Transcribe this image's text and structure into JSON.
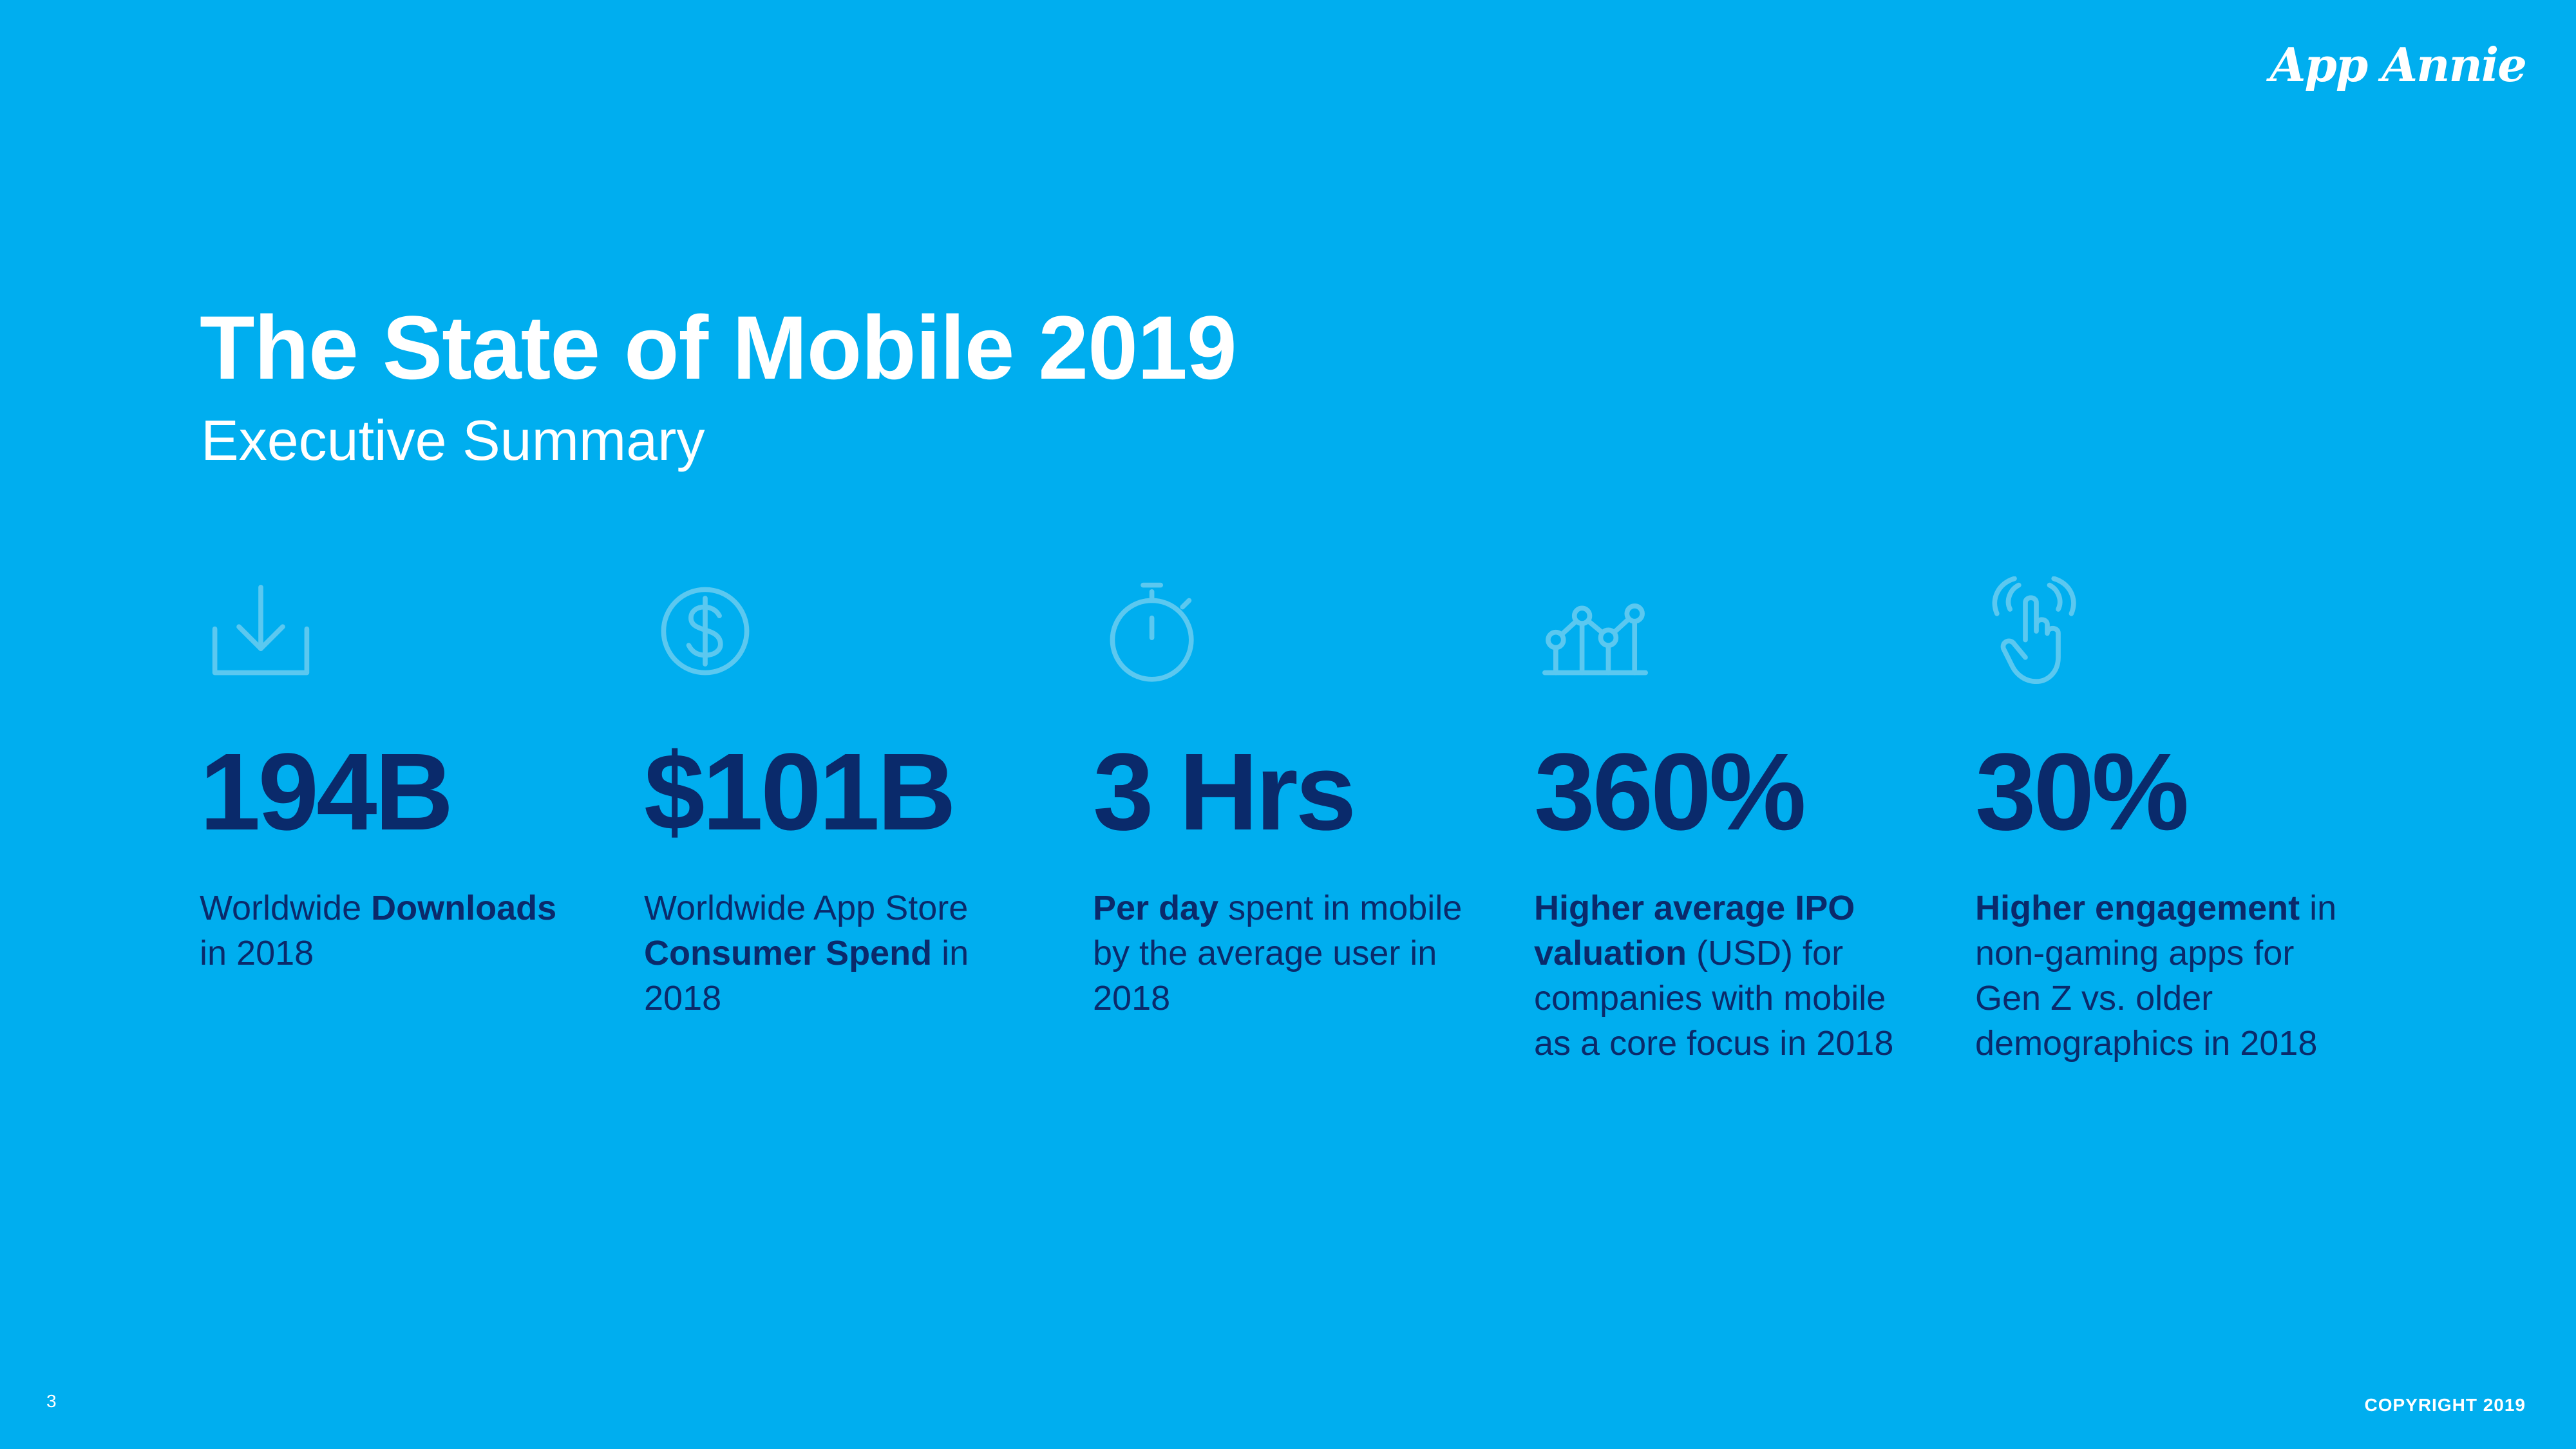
{
  "brand": {
    "logo_text": "App Annie"
  },
  "header": {
    "title": "The State of Mobile 2019",
    "subtitle": "Executive Summary"
  },
  "stats": [
    {
      "icon": "download-icon",
      "value": "194B",
      "desc_parts": [
        {
          "text": "Worldwide ",
          "bold": false
        },
        {
          "text": "Downloads",
          "bold": true
        },
        {
          "text": " in 2018",
          "bold": false
        }
      ]
    },
    {
      "icon": "dollar-coin-icon",
      "value": "$101B",
      "desc_parts": [
        {
          "text": "Worldwide App Store ",
          "bold": false
        },
        {
          "text": "Consumer Spend",
          "bold": true
        },
        {
          "text": " in 2018",
          "bold": false
        }
      ]
    },
    {
      "icon": "stopwatch-icon",
      "value": "3 Hrs",
      "desc_parts": [
        {
          "text": "Per day",
          "bold": true
        },
        {
          "text": " spent in mobile by the average user in 2018",
          "bold": false
        }
      ]
    },
    {
      "icon": "line-chart-icon",
      "value": "360%",
      "desc_parts": [
        {
          "text": "Higher average IPO valuation",
          "bold": true
        },
        {
          "text": " (USD) for companies with mobile as a core focus in 2018",
          "bold": false
        }
      ]
    },
    {
      "icon": "tap-gesture-icon",
      "value": "30%",
      "desc_parts": [
        {
          "text": "Higher engagement",
          "bold": true
        },
        {
          "text": " in non-gaming apps for Gen Z vs. older demographics in 2018",
          "bold": false
        }
      ]
    }
  ],
  "footer": {
    "page_number": "3",
    "copyright": "COPYRIGHT 2019"
  },
  "colors": {
    "background": "#00AEEF",
    "value_text": "#0A2A6B",
    "icon_stroke": "#5BC8F0",
    "heading_text": "#FFFFFF"
  }
}
